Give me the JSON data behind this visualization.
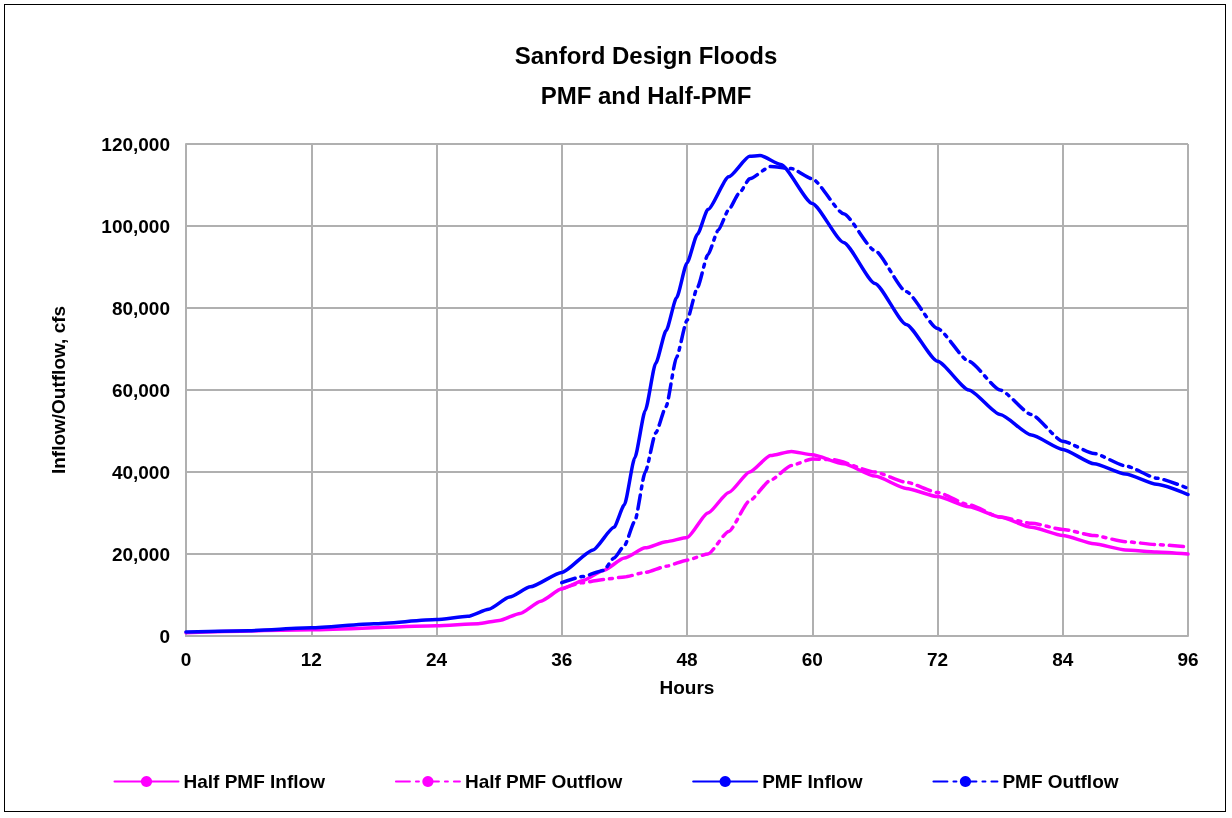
{
  "chart_data": {
    "type": "line",
    "title": "Sanford Design Floods\nPMF and Half-PMF",
    "xlabel": "Hours",
    "ylabel": "Inflow/Outflow, cfs",
    "xlim": [
      0,
      96
    ],
    "xticks": [
      0,
      12,
      24,
      36,
      48,
      60,
      72,
      84,
      96
    ],
    "ylim": [
      0,
      120000
    ],
    "yticks": [
      {
        "value": 0,
        "label": "0"
      },
      {
        "value": 20000,
        "label": "20,000"
      },
      {
        "value": 40000,
        "label": "40,000"
      },
      {
        "value": 60000,
        "label": "60,000"
      },
      {
        "value": 80000,
        "label": "80,000"
      },
      {
        "value": 100000,
        "label": "100,000"
      },
      {
        "value": 120000,
        "label": "120,000"
      }
    ],
    "grid": true,
    "legend": "bottom",
    "marker": "none",
    "series": [
      {
        "name": "Half PMF Inflow",
        "color": "#ff00ff",
        "line_style": "solid",
        "x": [
          0,
          12,
          24,
          28,
          30,
          32,
          34,
          36,
          38,
          40,
          42,
          44,
          46,
          48,
          50,
          52,
          54,
          56,
          58,
          60,
          63,
          66,
          69,
          72,
          75,
          78,
          81,
          84,
          87,
          90,
          93,
          96
        ],
        "values": [
          800,
          1500,
          2500,
          3000,
          3800,
          5500,
          8500,
          11500,
          13500,
          16000,
          19000,
          21500,
          23000,
          24000,
          30000,
          35000,
          40000,
          44000,
          45000,
          44200,
          42000,
          39000,
          36000,
          34000,
          31500,
          29000,
          26500,
          24500,
          22500,
          21000,
          20500,
          20000
        ]
      },
      {
        "name": "Half PMF Outflow",
        "color": "#ff00ff",
        "line_style": "dashed",
        "x": [
          36,
          38,
          40,
          42,
          44,
          46,
          48,
          50,
          52,
          54,
          56,
          58,
          60,
          62,
          66,
          69,
          72,
          75,
          78,
          81,
          84,
          87,
          90,
          93,
          96
        ],
        "values": [
          11500,
          13000,
          13800,
          14400,
          15500,
          17000,
          18500,
          20000,
          25500,
          33000,
          38000,
          41600,
          43200,
          43000,
          40000,
          37500,
          35000,
          32000,
          29000,
          27500,
          26000,
          24500,
          23000,
          22300,
          21700
        ]
      },
      {
        "name": "PMF Inflow",
        "color": "#0000ff",
        "line_style": "solid",
        "x": [
          0,
          6,
          12,
          18,
          24,
          27,
          29,
          31,
          33,
          36,
          39,
          41,
          42,
          43,
          44,
          45,
          46,
          47,
          48,
          49,
          50,
          52,
          54,
          55,
          57,
          60,
          63,
          66,
          69,
          72,
          75,
          78,
          81,
          84,
          87,
          90,
          93,
          96
        ],
        "values": [
          1000,
          1300,
          2000,
          3000,
          4000,
          4800,
          6500,
          9500,
          12000,
          15500,
          21000,
          26500,
          32000,
          43500,
          55000,
          66500,
          74500,
          82500,
          91000,
          98000,
          104000,
          112000,
          117000,
          117200,
          115000,
          105500,
          96000,
          86000,
          76000,
          67000,
          60000,
          54000,
          49000,
          45500,
          42000,
          39500,
          37000,
          34500
        ]
      },
      {
        "name": "PMF Outflow",
        "color": "#0000ff",
        "line_style": "dashed",
        "x": [
          36,
          38,
          40,
          41,
          42,
          43,
          44,
          45,
          46,
          47,
          48,
          49,
          50,
          51,
          52,
          53,
          54,
          56,
          58,
          60,
          63,
          66,
          69,
          72,
          75,
          78,
          81,
          84,
          87,
          90,
          93,
          96
        ],
        "values": [
          13000,
          14500,
          16000,
          19000,
          22000,
          28000,
          40000,
          49500,
          56000,
          68000,
          77000,
          85000,
          93000,
          99000,
          104000,
          108000,
          111500,
          114500,
          114000,
          111500,
          103000,
          94000,
          84000,
          75000,
          67000,
          60000,
          54000,
          47500,
          44500,
          41500,
          38500,
          36000
        ]
      }
    ]
  }
}
